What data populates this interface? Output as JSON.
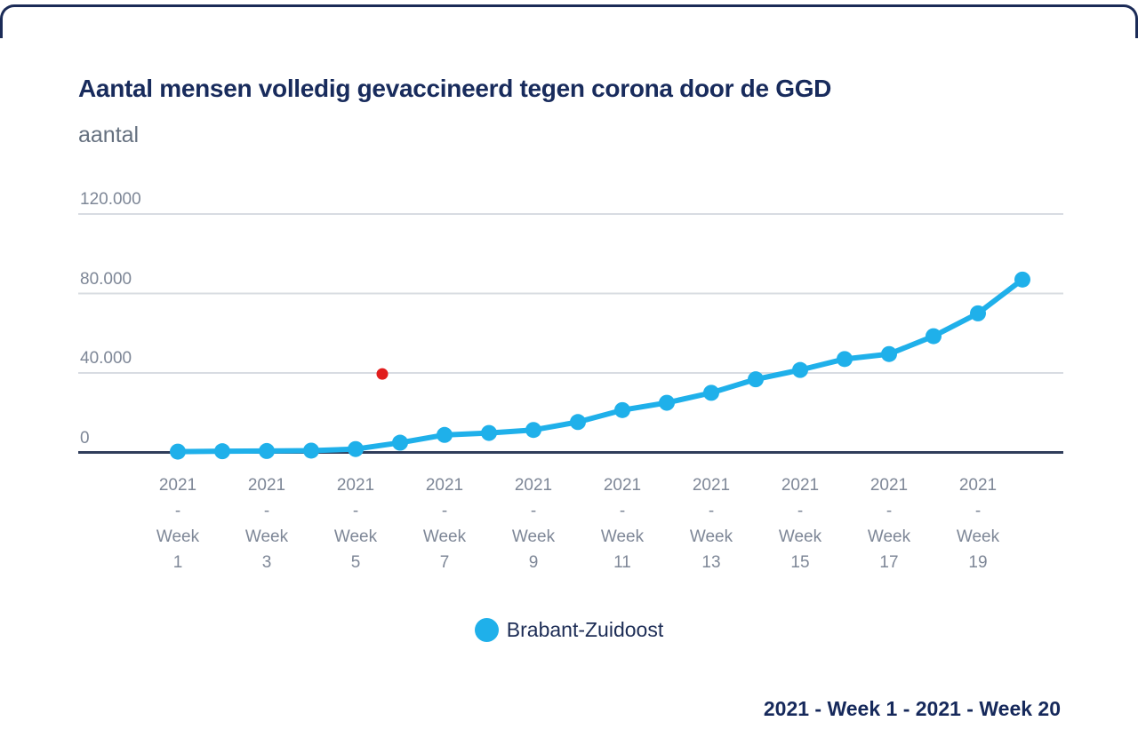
{
  "frame": {
    "border_color": "#1B2B57",
    "background": "#ffffff"
  },
  "chart_data": {
    "type": "line",
    "title": "Aantal mensen volledig gevaccineerd tegen corona door de GGD",
    "subtitle": "aantal",
    "categories": [
      "2021 - Week 1",
      "2021 - Week 2",
      "2021 - Week 3",
      "2021 - Week 4",
      "2021 - Week 5",
      "2021 - Week 6",
      "2021 - Week 7",
      "2021 - Week 8",
      "2021 - Week 9",
      "2021 - Week 10",
      "2021 - Week 11",
      "2021 - Week 12",
      "2021 - Week 13",
      "2021 - Week 14",
      "2021 - Week 15",
      "2021 - Week 16",
      "2021 - Week 17",
      "2021 - Week 18",
      "2021 - Week 19",
      "2021 - Week 20"
    ],
    "series": [
      {
        "name": "Brabant-Zuidoost",
        "color": "#1FB0EA",
        "values": [
          400,
          600,
          700,
          900,
          1700,
          4900,
          8800,
          9800,
          11300,
          15300,
          21300,
          25000,
          30000,
          36800,
          41500,
          47000,
          49500,
          58500,
          70000,
          87000
        ]
      }
    ],
    "ylim": [
      0,
      120000
    ],
    "y_ticks": [
      {
        "label": "0",
        "value": 0
      },
      {
        "label": "40.000",
        "value": 40000
      },
      {
        "label": "80.000",
        "value": 80000
      },
      {
        "label": "120.000",
        "value": 120000
      }
    ],
    "x_ticks": [
      {
        "week": 1,
        "label": "2021 - Week 1"
      },
      {
        "week": 3,
        "label": "2021 - Week 3"
      },
      {
        "week": 5,
        "label": "2021 - Week 5"
      },
      {
        "week": 7,
        "label": "2021 - Week 7"
      },
      {
        "week": 9,
        "label": "2021 - Week 9"
      },
      {
        "week": 11,
        "label": "2021 - Week 11"
      },
      {
        "week": 13,
        "label": "2021 - Week 13"
      },
      {
        "week": 15,
        "label": "2021 - Week 15"
      },
      {
        "week": 17,
        "label": "2021 - Week 17"
      },
      {
        "week": 19,
        "label": "2021 - Week 19"
      }
    ],
    "grid": "horizontal",
    "grid_color": "#D8DCE2",
    "axis_line_color": "#2F3D5B",
    "legend": {
      "position": "bottom-center",
      "entries": [
        {
          "label": "Brabant-Zuidoost",
          "color": "#1FB0EA"
        }
      ]
    },
    "annotations": {
      "range_label": "2021 - Week 1 - 2021 - Week 20",
      "red_dot": {
        "week_x": 5.6,
        "value": 39500,
        "color": "#E11D1D"
      }
    }
  }
}
